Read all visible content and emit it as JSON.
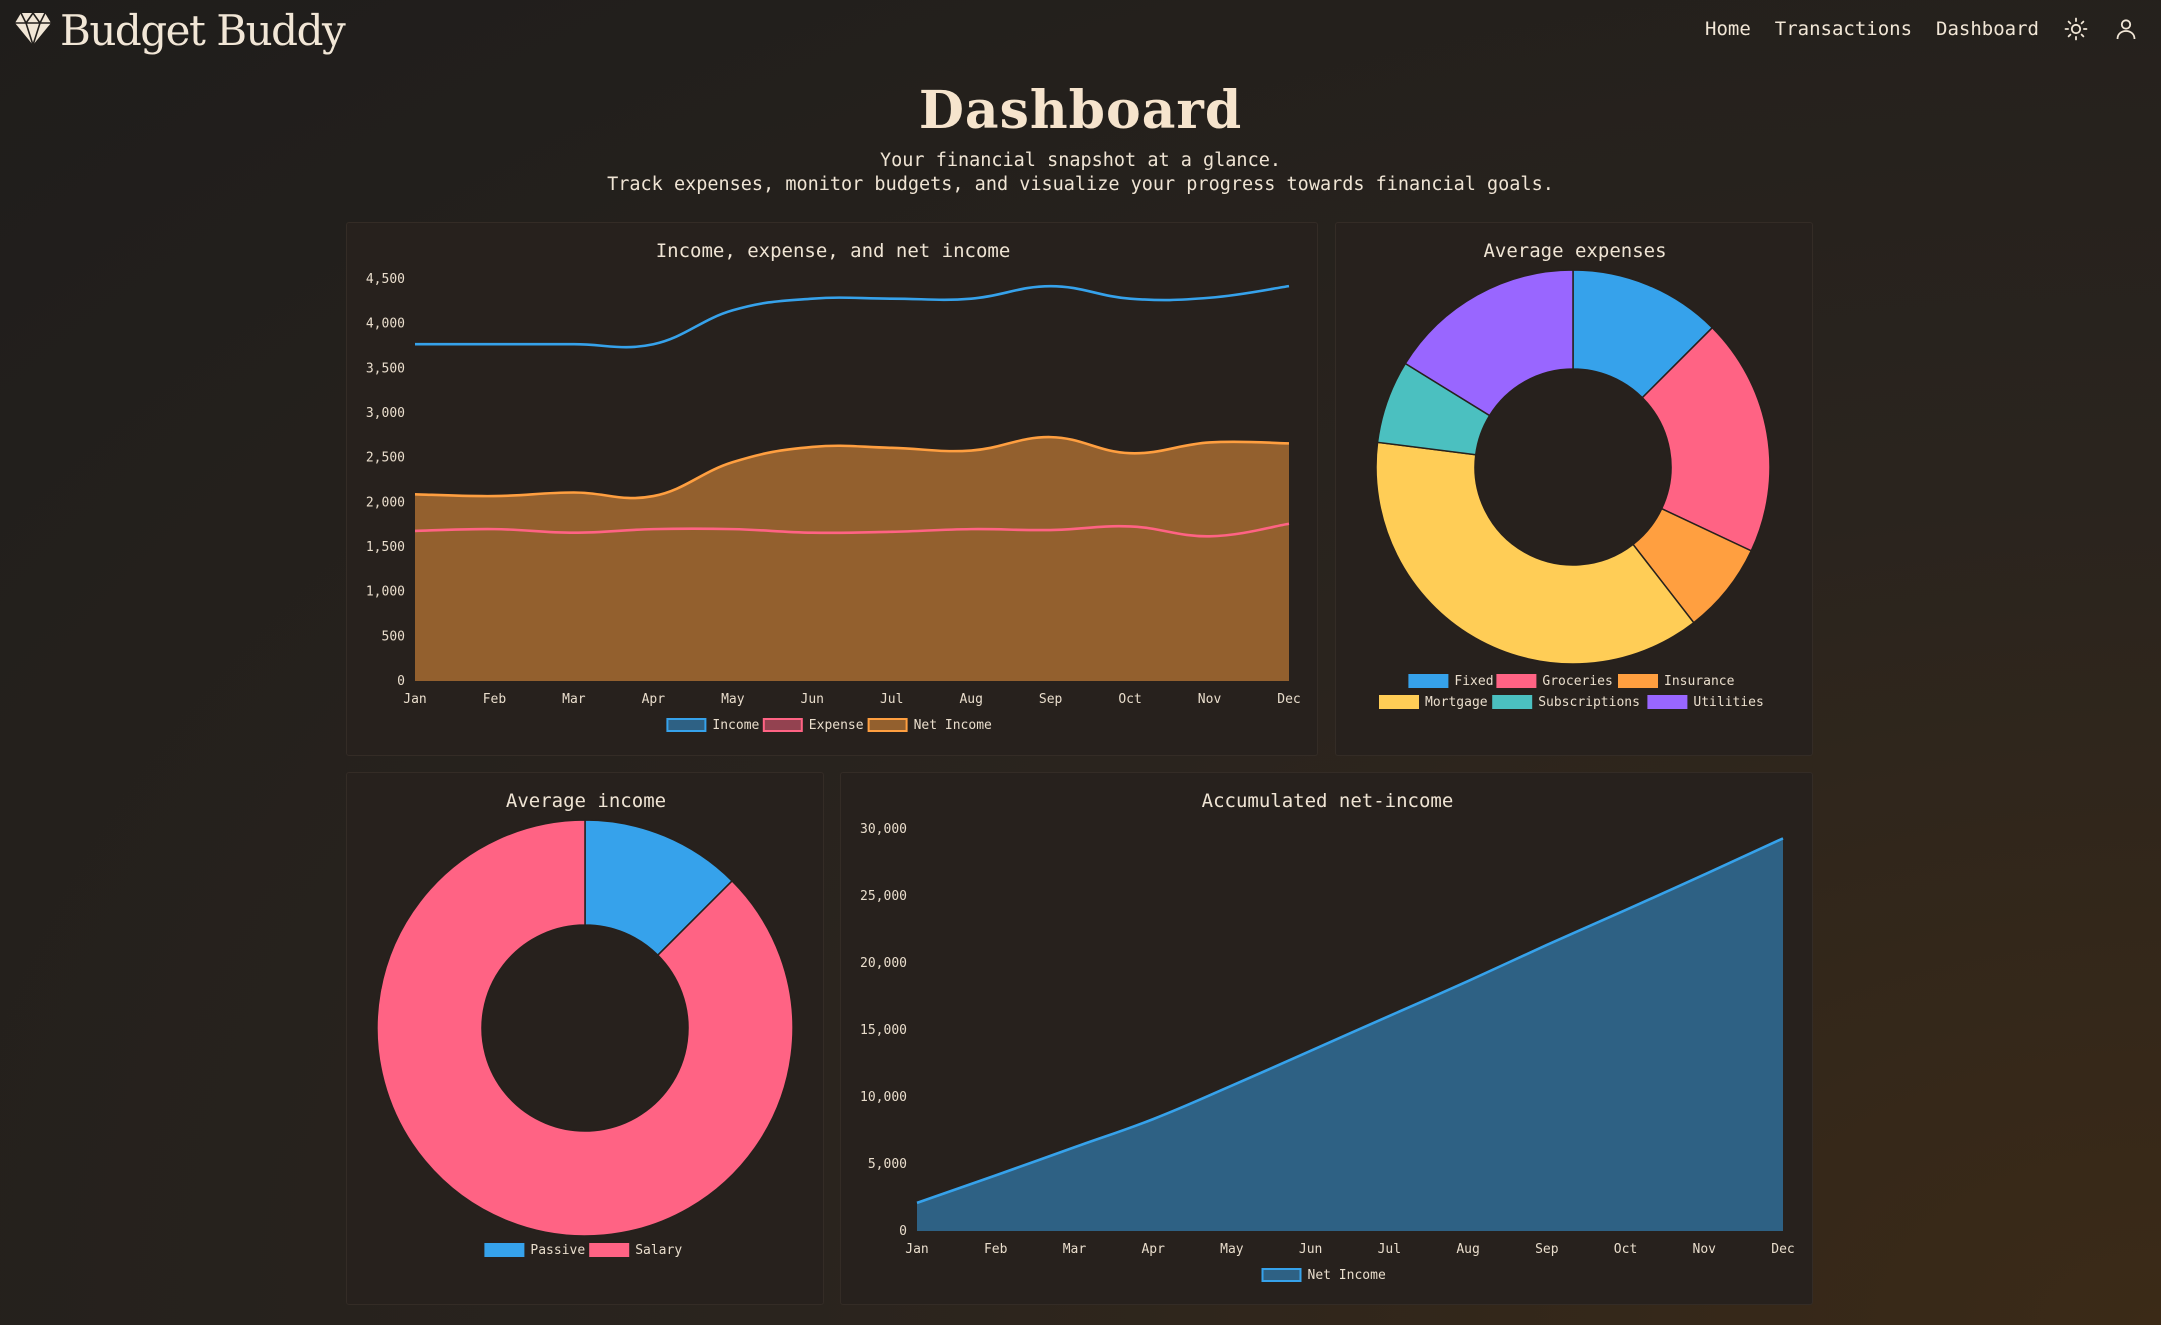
{
  "app": {
    "title": "Budget Buddy"
  },
  "nav": {
    "items": [
      "Home",
      "Transactions",
      "Dashboard"
    ],
    "icons": [
      "sun-icon",
      "user-icon"
    ]
  },
  "page": {
    "title": "Dashboard",
    "subtitle_1": "Your financial snapshot at a glance.",
    "subtitle_2": "Track expenses, monitor budgets, and visualize your progress towards financial goals."
  },
  "colors": {
    "blue": "#36a2eb",
    "pink": "#ff6384",
    "orange": "#ff9f40",
    "yellow": "#ffcd56",
    "teal": "#4bc0c0",
    "purple": "#9966ff"
  },
  "chart_data": [
    {
      "type": "line",
      "title": "Income, expense, and net income",
      "categories": [
        "Jan",
        "Feb",
        "Mar",
        "Apr",
        "May",
        "Jun",
        "Jul",
        "Aug",
        "Sep",
        "Oct",
        "Nov",
        "Dec"
      ],
      "ylim": [
        0,
        4500
      ],
      "yticks": [
        0,
        500,
        1000,
        1500,
        2000,
        2500,
        3000,
        3500,
        4000,
        4500
      ],
      "series": [
        {
          "name": "Income",
          "color": "#36a2eb",
          "fill": false,
          "values": [
            3770,
            3770,
            3770,
            3770,
            4150,
            4280,
            4280,
            4280,
            4420,
            4280,
            4290,
            4420
          ]
        },
        {
          "name": "Expense",
          "color": "#ff6384",
          "fill": false,
          "values": [
            1680,
            1700,
            1660,
            1700,
            1700,
            1660,
            1670,
            1700,
            1690,
            1730,
            1620,
            1760
          ]
        },
        {
          "name": "Net Income",
          "color": "#ff9f40",
          "fill": true,
          "values": [
            2090,
            2070,
            2110,
            2070,
            2450,
            2620,
            2610,
            2580,
            2730,
            2550,
            2670,
            2660
          ]
        }
      ],
      "legend": "bottom",
      "grid": false
    },
    {
      "type": "pie",
      "title": "Average expenses",
      "categories": [
        "Fixed",
        "Groceries",
        "Insurance",
        "Mortgage",
        "Subscriptions",
        "Utilities"
      ],
      "values": [
        12.5,
        19.5,
        7.5,
        37.5,
        6.8,
        16.2
      ],
      "colors": [
        "#36a2eb",
        "#ff6384",
        "#ff9f40",
        "#ffcd56",
        "#4bc0c0",
        "#9966ff"
      ],
      "legend": "bottom"
    },
    {
      "type": "pie",
      "title": "Average income",
      "categories": [
        "Passive",
        "Salary"
      ],
      "values": [
        12.5,
        87.5
      ],
      "colors": [
        "#36a2eb",
        "#ff6384"
      ],
      "legend": "bottom"
    },
    {
      "type": "area",
      "title": "Accumulated net-income",
      "categories": [
        "Jan",
        "Feb",
        "Mar",
        "Apr",
        "May",
        "Jun",
        "Jul",
        "Aug",
        "Sep",
        "Oct",
        "Nov",
        "Dec"
      ],
      "ylim": [
        0,
        30000
      ],
      "yticks": [
        0,
        5000,
        10000,
        15000,
        20000,
        25000,
        30000
      ],
      "series": [
        {
          "name": "Net Income",
          "color": "#36a2eb",
          "fill": true,
          "values": [
            2100,
            4150,
            6250,
            8350,
            10850,
            13450,
            16050,
            18650,
            21350,
            23950,
            26600,
            29300
          ]
        }
      ],
      "legend": "bottom",
      "grid": false
    }
  ]
}
